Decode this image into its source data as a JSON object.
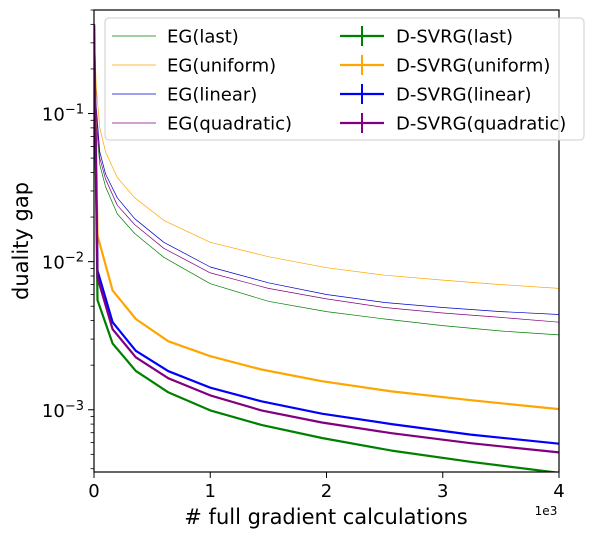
{
  "chart_data": {
    "type": "line",
    "title": "",
    "xlabel": "# full gradient calculations",
    "ylabel": "duality gap",
    "x_offset_label": "1e3",
    "x_scale": "linear",
    "y_scale": "log",
    "xlim": [
      0,
      4
    ],
    "ylim": [
      0.00038,
      0.5
    ],
    "x_ticks": [
      {
        "value": 0,
        "label": "0"
      },
      {
        "value": 1,
        "label": "1"
      },
      {
        "value": 2,
        "label": "2"
      },
      {
        "value": 3,
        "label": "3"
      },
      {
        "value": 4,
        "label": "4"
      }
    ],
    "y_ticks": [
      {
        "value": 0.001,
        "base": "10",
        "exp": "−3"
      },
      {
        "value": 0.01,
        "base": "10",
        "exp": "−2"
      },
      {
        "value": 0.1,
        "base": "10",
        "exp": "−1"
      }
    ],
    "grid": false,
    "legend_position": "top",
    "legend_columns": 2,
    "series": [
      {
        "name": "EG(last)",
        "color": "#008000",
        "style": "thin",
        "x": [
          0,
          0.02,
          0.05,
          0.1,
          0.2,
          0.35,
          0.6,
          1.0,
          1.5,
          2.0,
          2.5,
          3.0,
          3.5,
          4.0
        ],
        "y": [
          0.38,
          0.085,
          0.045,
          0.032,
          0.021,
          0.0155,
          0.0107,
          0.0071,
          0.0054,
          0.0046,
          0.0041,
          0.0037,
          0.0034,
          0.0032
        ]
      },
      {
        "name": "EG(uniform)",
        "color": "#ffa500",
        "style": "thin",
        "x": [
          0,
          0.02,
          0.05,
          0.1,
          0.2,
          0.35,
          0.6,
          1.0,
          1.5,
          2.0,
          2.5,
          3.0,
          3.5,
          4.0
        ],
        "y": [
          0.42,
          0.15,
          0.08,
          0.055,
          0.037,
          0.027,
          0.019,
          0.0135,
          0.0108,
          0.0091,
          0.0081,
          0.0075,
          0.007,
          0.0066
        ]
      },
      {
        "name": "EG(linear)",
        "color": "#0000cd",
        "style": "thin",
        "x": [
          0,
          0.02,
          0.05,
          0.1,
          0.2,
          0.35,
          0.6,
          1.0,
          1.5,
          2.0,
          2.5,
          3.0,
          3.5,
          4.0
        ],
        "y": [
          0.4,
          0.11,
          0.055,
          0.039,
          0.027,
          0.0195,
          0.0135,
          0.0092,
          0.0072,
          0.006,
          0.0053,
          0.0049,
          0.0046,
          0.0044
        ]
      },
      {
        "name": "EG(quadratic)",
        "color": "#800080",
        "style": "thin",
        "x": [
          0,
          0.02,
          0.05,
          0.1,
          0.2,
          0.35,
          0.6,
          1.0,
          1.5,
          2.0,
          2.5,
          3.0,
          3.5,
          4.0
        ],
        "y": [
          0.4,
          0.1,
          0.05,
          0.036,
          0.024,
          0.0178,
          0.0123,
          0.0084,
          0.0066,
          0.0056,
          0.0049,
          0.0045,
          0.0042,
          0.0039
        ]
      },
      {
        "name": "D-SVRG(last)",
        "color": "#008000",
        "style": "errorbar",
        "x": [
          0,
          0.03,
          0.16,
          0.36,
          0.64,
          1.0,
          1.44,
          1.96,
          2.56,
          3.24,
          4.0
        ],
        "y": [
          0.4,
          0.0055,
          0.0028,
          0.00183,
          0.00131,
          0.00099,
          0.00079,
          0.000645,
          0.00053,
          0.000445,
          0.000375
        ]
      },
      {
        "name": "D-SVRG(uniform)",
        "color": "#ffa500",
        "style": "errorbar",
        "x": [
          0,
          0.03,
          0.16,
          0.36,
          0.64,
          1.0,
          1.44,
          1.96,
          2.56,
          3.24,
          4.0
        ],
        "y": [
          0.4,
          0.015,
          0.0064,
          0.0041,
          0.0029,
          0.0023,
          0.00187,
          0.00156,
          0.00133,
          0.00116,
          0.00101
        ]
      },
      {
        "name": "D-SVRG(linear)",
        "color": "#0000ff",
        "style": "errorbar",
        "x": [
          0,
          0.03,
          0.16,
          0.36,
          0.64,
          1.0,
          1.44,
          1.96,
          2.56,
          3.24,
          4.0
        ],
        "y": [
          0.4,
          0.0087,
          0.0039,
          0.0025,
          0.00182,
          0.00141,
          0.00114,
          0.00094,
          0.0008,
          0.00068,
          0.00059
        ]
      },
      {
        "name": "D-SVRG(quadratic)",
        "color": "#800080",
        "style": "errorbar",
        "x": [
          0,
          0.03,
          0.16,
          0.36,
          0.64,
          1.0,
          1.44,
          1.96,
          2.56,
          3.24,
          4.0
        ],
        "y": [
          0.4,
          0.0078,
          0.0035,
          0.00226,
          0.00163,
          0.00125,
          0.00099,
          0.00082,
          0.000695,
          0.000595,
          0.000515
        ]
      }
    ]
  }
}
